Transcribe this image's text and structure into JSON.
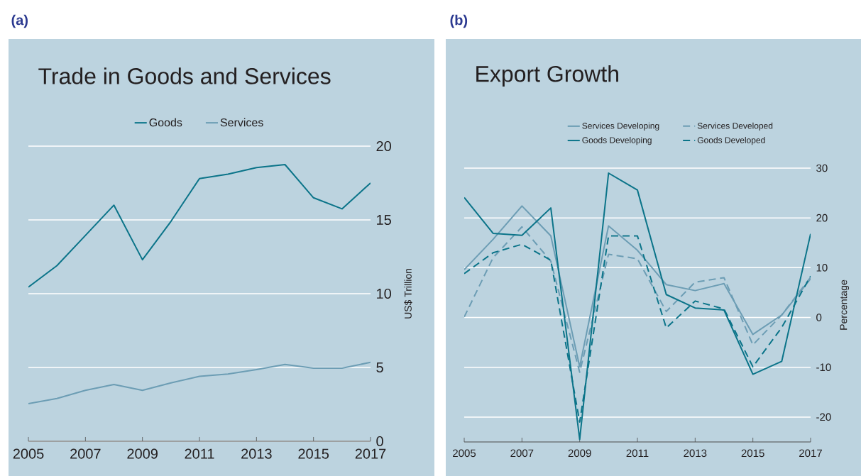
{
  "chart_data": [
    {
      "type": "line",
      "title": "Trade in Goods and Services",
      "ylabel": "US$ Trillion",
      "annotations": [
        "(a)"
      ],
      "x": [
        2005,
        2006,
        2007,
        2008,
        2009,
        2010,
        2011,
        2012,
        2013,
        2014,
        2015,
        2016,
        2017
      ],
      "series": [
        {
          "name": "Goods",
          "color": "#0b7489",
          "values": [
            10.45,
            11.9,
            13.95,
            16.0,
            12.3,
            14.9,
            17.8,
            18.1,
            18.55,
            18.75,
            16.5,
            15.75,
            17.5
          ]
        },
        {
          "name": "Services",
          "color": "#6c9db4",
          "values": [
            2.55,
            2.9,
            3.45,
            3.85,
            3.45,
            3.95,
            4.4,
            4.55,
            4.85,
            5.2,
            4.95,
            4.95,
            5.35
          ]
        }
      ],
      "xlim": [
        2005,
        2017
      ],
      "xticks": [
        2005,
        2007,
        2009,
        2011,
        2013,
        2015,
        2017
      ],
      "ylim": [
        0,
        20
      ],
      "yticks": [
        0,
        5,
        10,
        15,
        20
      ],
      "grid": "y",
      "legend": "top",
      "line_style": "solid"
    },
    {
      "type": "line",
      "title": "Export Growth",
      "ylabel": "Percentage",
      "annotations": [
        "(b)"
      ],
      "x": [
        2005,
        2006,
        2007,
        2008,
        2009,
        2010,
        2011,
        2012,
        2013,
        2014,
        2015,
        2016,
        2017
      ],
      "series": [
        {
          "name": "Services Developing",
          "color": "#6c9db4",
          "line_style": "solid",
          "values": [
            9.6,
            15.7,
            22.4,
            16.4,
            -9.9,
            18.4,
            13.5,
            6.6,
            5.4,
            6.8,
            -3.4,
            0.5,
            7.8
          ]
        },
        {
          "name": "Services Developed",
          "color": "#6c9db4",
          "line_style": "dashed",
          "values": [
            0.1,
            12,
            18.2,
            11.3,
            -11,
            12.7,
            11.8,
            1.2,
            7.1,
            8,
            -5.5,
            0.5,
            8.1
          ]
        },
        {
          "name": "Goods Developing",
          "color": "#0b7489",
          "line_style": "solid",
          "values": [
            24.1,
            16.9,
            16.5,
            22,
            -24.5,
            29,
            25.6,
            4.6,
            1.9,
            1.5,
            -11.4,
            -8.8,
            16.8
          ]
        },
        {
          "name": "Goods Developed",
          "color": "#0b7489",
          "line_style": "dashed",
          "values": [
            8.8,
            13,
            14.7,
            11.5,
            -21,
            16.4,
            16.4,
            -2.1,
            3.3,
            1.7,
            -9.9,
            -2,
            8.3
          ]
        }
      ],
      "xlim": [
        2005,
        2017
      ],
      "xticks": [
        2005,
        2007,
        2009,
        2011,
        2013,
        2015,
        2017
      ],
      "ylim": [
        -25,
        30
      ],
      "yticks": [
        -20,
        -10,
        0,
        10,
        20,
        30
      ],
      "grid": "y",
      "legend": "top"
    }
  ]
}
